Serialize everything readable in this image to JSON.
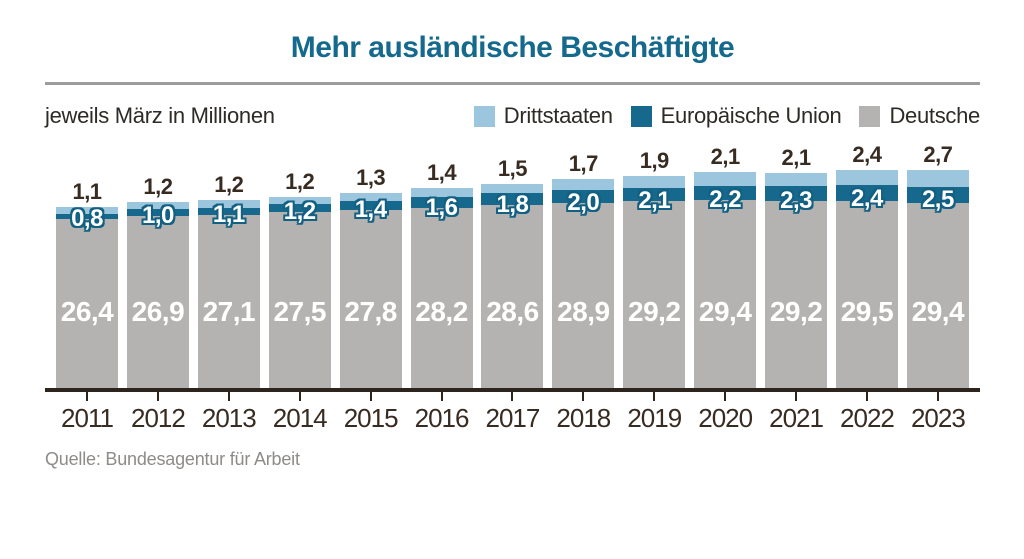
{
  "title": "Mehr ausländische Beschäftigte",
  "subtitle": "jeweils März in Millionen",
  "source": "Quelle: Bundesagentur für Arbeit",
  "legend": [
    {
      "label": "Drittstaaten",
      "color": "#9cc6dd"
    },
    {
      "label": "Europäische Union",
      "color": "#16698c"
    },
    {
      "label": "Deutsche",
      "color": "#b5b3b1"
    }
  ],
  "colors": {
    "title": "#14698d",
    "axis": "#2d241e",
    "rule": "#9c9c9c",
    "dark_text": "#382c22",
    "source_text": "#8e8b88",
    "eu_label_outline": "#136083"
  },
  "chart_data": {
    "type": "bar",
    "stacked": true,
    "title": "Mehr ausländische Beschäftigte",
    "xlabel": "",
    "ylabel": "jeweils März in Millionen",
    "unit": "Millionen",
    "decimal_separator": ",",
    "legend_position": "top-right",
    "grid": false,
    "ylim": [
      0,
      35
    ],
    "categories": [
      "2011",
      "2012",
      "2013",
      "2014",
      "2015",
      "2016",
      "2017",
      "2018",
      "2019",
      "2020",
      "2021",
      "2022",
      "2023"
    ],
    "series": [
      {
        "name": "Drittstaaten",
        "color": "#9cc6dd",
        "label_position": "above-bar",
        "values": [
          1.1,
          1.2,
          1.2,
          1.2,
          1.3,
          1.4,
          1.5,
          1.7,
          1.9,
          2.1,
          2.1,
          2.4,
          2.7
        ]
      },
      {
        "name": "Europäische Union",
        "color": "#16698c",
        "label_position": "on-segment",
        "values": [
          0.8,
          1.0,
          1.1,
          1.2,
          1.4,
          1.6,
          1.8,
          2.0,
          2.1,
          2.2,
          2.3,
          2.4,
          2.5
        ]
      },
      {
        "name": "Deutsche",
        "color": "#b5b3b1",
        "label_position": "on-segment",
        "values": [
          26.4,
          26.9,
          27.1,
          27.5,
          27.8,
          28.2,
          28.6,
          28.9,
          29.2,
          29.4,
          29.2,
          29.5,
          29.4
        ]
      }
    ]
  }
}
